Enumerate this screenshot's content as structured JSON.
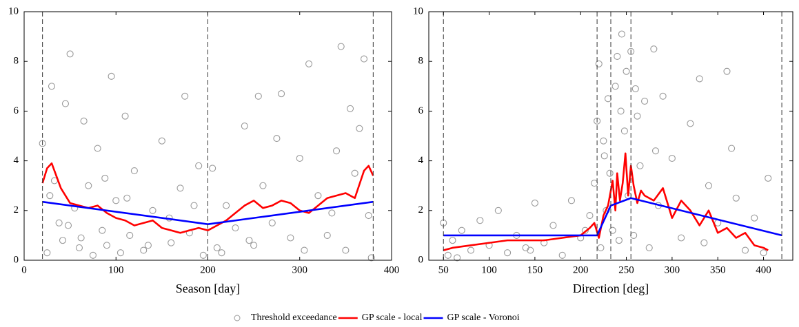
{
  "chart_data": [
    {
      "type": "scatter",
      "xlabel": "Season [day]",
      "xlim": [
        0,
        400
      ],
      "ylim": [
        0,
        10
      ],
      "xticks": [
        0,
        100,
        200,
        300,
        400
      ],
      "yticks": [
        0,
        2,
        4,
        6,
        8,
        10
      ],
      "legend": "bottom",
      "vlines": [
        20,
        200,
        380
      ],
      "series": [
        {
          "name": "Threshold exceedance",
          "color": "#999999",
          "mode": "markers",
          "x": [
            20,
            25,
            30,
            33,
            38,
            42,
            45,
            50,
            55,
            60,
            65,
            70,
            75,
            80,
            85,
            90,
            95,
            100,
            105,
            110,
            115,
            120,
            130,
            140,
            150,
            160,
            170,
            180,
            190,
            195,
            205,
            210,
            220,
            230,
            240,
            250,
            255,
            260,
            270,
            280,
            290,
            300,
            310,
            320,
            330,
            340,
            345,
            350,
            360,
            365,
            370,
            375,
            378,
            28,
            48,
            62,
            88,
            112,
            135,
            158,
            175,
            185,
            215,
            245,
            275,
            305,
            335,
            355
          ],
          "values": [
            4.7,
            0.3,
            7.0,
            3.2,
            1.5,
            0.8,
            6.3,
            8.3,
            2.1,
            0.5,
            5.6,
            3.0,
            0.2,
            4.5,
            1.2,
            0.6,
            7.4,
            2.4,
            0.3,
            5.8,
            1.0,
            3.6,
            0.4,
            2.0,
            4.8,
            0.7,
            2.9,
            1.1,
            3.8,
            0.2,
            3.7,
            0.5,
            2.2,
            1.3,
            5.4,
            0.6,
            6.6,
            3.0,
            1.5,
            6.7,
            0.9,
            4.1,
            7.9,
            2.6,
            1.0,
            4.4,
            8.6,
            0.4,
            3.5,
            5.3,
            8.1,
            1.8,
            0.1,
            2.6,
            1.4,
            0.9,
            3.3,
            2.5,
            0.6,
            1.7,
            6.6,
            2.2,
            0.3,
            0.8,
            4.9,
            0.4,
            1.9,
            6.1
          ]
        },
        {
          "name": "GP scale - local",
          "color": "#ff0000",
          "mode": "lines",
          "x": [
            20,
            25,
            30,
            35,
            40,
            50,
            60,
            70,
            80,
            90,
            100,
            110,
            120,
            130,
            140,
            150,
            160,
            170,
            180,
            190,
            200,
            210,
            220,
            230,
            240,
            250,
            260,
            270,
            280,
            290,
            300,
            310,
            320,
            330,
            340,
            350,
            360,
            370,
            375,
            380
          ],
          "values": [
            3.1,
            3.7,
            3.9,
            3.4,
            2.9,
            2.3,
            2.2,
            2.1,
            2.2,
            1.9,
            1.7,
            1.6,
            1.4,
            1.5,
            1.6,
            1.3,
            1.2,
            1.1,
            1.2,
            1.3,
            1.2,
            1.4,
            1.6,
            1.9,
            2.2,
            2.4,
            2.1,
            2.2,
            2.4,
            2.3,
            2.0,
            1.9,
            2.2,
            2.5,
            2.6,
            2.7,
            2.5,
            3.6,
            3.8,
            3.4
          ]
        },
        {
          "name": "GP scale - Voronoi",
          "color": "#0000ff",
          "mode": "lines",
          "x": [
            20,
            200,
            380
          ],
          "values": [
            2.35,
            1.45,
            2.35
          ]
        }
      ]
    },
    {
      "type": "scatter",
      "xlabel": "Direction [deg]",
      "xlim": [
        34,
        432
      ],
      "ylim": [
        0,
        10
      ],
      "xticks": [
        50,
        100,
        150,
        200,
        250,
        300,
        350,
        400
      ],
      "yticks": [
        0,
        2,
        4,
        6,
        8,
        10
      ],
      "vlines": [
        50,
        218,
        233,
        255,
        420
      ],
      "series": [
        {
          "name": "Threshold exceedance",
          "color": "#999999",
          "mode": "markers",
          "x": [
            50,
            55,
            60,
            70,
            80,
            90,
            100,
            110,
            120,
            130,
            140,
            150,
            160,
            170,
            180,
            190,
            200,
            210,
            215,
            218,
            220,
            222,
            225,
            228,
            230,
            232,
            235,
            238,
            240,
            242,
            245,
            248,
            250,
            252,
            255,
            258,
            260,
            265,
            270,
            275,
            280,
            285,
            290,
            300,
            310,
            320,
            330,
            340,
            350,
            360,
            370,
            380,
            390,
            400,
            405,
            65,
            145,
            205,
            226,
            244,
            262,
            282,
            335,
            365
          ],
          "values": [
            1.5,
            0.2,
            0.8,
            1.2,
            0.4,
            1.6,
            0.6,
            2.0,
            0.3,
            1.0,
            0.5,
            2.3,
            0.7,
            1.4,
            0.2,
            2.4,
            0.9,
            1.8,
            3.1,
            5.6,
            7.9,
            0.5,
            4.8,
            2.0,
            6.5,
            3.5,
            1.2,
            7.0,
            8.2,
            0.8,
            9.1,
            5.2,
            7.6,
            2.6,
            8.4,
            1.0,
            6.9,
            3.8,
            6.4,
            0.5,
            8.5,
            2.2,
            6.6,
            4.1,
            0.9,
            5.5,
            7.3,
            3.0,
            1.5,
            7.6,
            2.5,
            0.4,
            1.7,
            0.3,
            3.3,
            0.1,
            0.4,
            1.2,
            4.2,
            6.0,
            5.8,
            4.4,
            0.7,
            4.5
          ]
        },
        {
          "name": "GP scale - local",
          "color": "#ff0000",
          "mode": "lines",
          "x": [
            50,
            60,
            80,
            100,
            120,
            140,
            160,
            180,
            200,
            210,
            215,
            220,
            225,
            230,
            235,
            238,
            240,
            243,
            246,
            249,
            252,
            255,
            258,
            262,
            266,
            270,
            280,
            290,
            300,
            310,
            320,
            330,
            340,
            350,
            360,
            370,
            380,
            390,
            400,
            405
          ],
          "values": [
            0.4,
            0.5,
            0.6,
            0.7,
            0.8,
            0.8,
            0.8,
            0.9,
            1.0,
            1.3,
            1.5,
            0.9,
            1.8,
            2.2,
            3.2,
            2.0,
            3.5,
            2.4,
            3.1,
            4.3,
            2.6,
            3.8,
            3.0,
            2.3,
            2.8,
            2.6,
            2.4,
            2.9,
            1.7,
            2.4,
            2.0,
            1.4,
            2.0,
            1.1,
            1.3,
            0.9,
            1.1,
            0.6,
            0.5,
            0.4
          ]
        },
        {
          "name": "GP scale - Voronoi",
          "color": "#0000ff",
          "mode": "lines",
          "x": [
            50,
            218,
            233,
            255,
            420
          ],
          "values": [
            1.0,
            1.0,
            2.2,
            2.5,
            1.0
          ]
        }
      ]
    }
  ]
}
